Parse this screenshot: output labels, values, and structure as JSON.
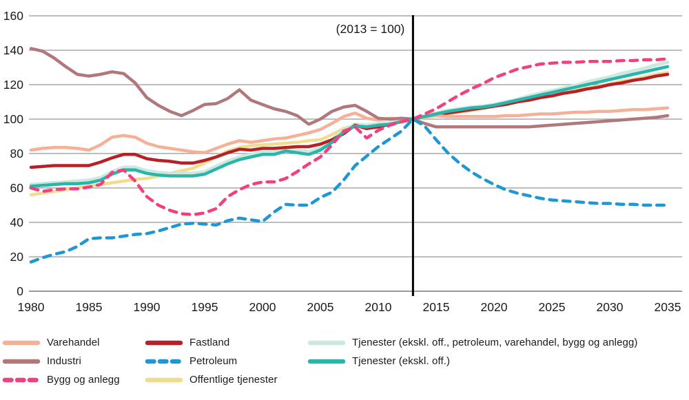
{
  "chart_data": {
    "type": "line",
    "title": "",
    "annotation": "(2013 = 100)",
    "xlabel": "",
    "ylabel": "",
    "ylim": [
      0,
      160
    ],
    "xlim": [
      1980,
      2035
    ],
    "grid": true,
    "legend_position": "bottom",
    "reference_line_x": 2013,
    "x_ticks": [
      1980,
      1985,
      1990,
      1995,
      2000,
      2005,
      2010,
      2015,
      2020,
      2025,
      2030,
      2035
    ],
    "y_ticks": [
      0,
      20,
      40,
      60,
      80,
      100,
      120,
      140,
      160
    ],
    "x_start": 1980,
    "x_step": 1,
    "series": [
      {
        "id": "offentlige",
        "name": "Offentlige tjenester",
        "color": "#EFDC8E",
        "dashed": false,
        "width": 4.5,
        "values": [
          56,
          57,
          58,
          59,
          60,
          61,
          62,
          63,
          64,
          65,
          65.5,
          67,
          68.5,
          70,
          71.5,
          74.5,
          78,
          81.5,
          83.5,
          84.5,
          85,
          85.5,
          86,
          86.5,
          87.5,
          88,
          91,
          94.5,
          96.5,
          96,
          96.5,
          97.5,
          98.5,
          100,
          101,
          102,
          103,
          104,
          105,
          106,
          107.5,
          108.5,
          110,
          111,
          112.5,
          113.5,
          115,
          116.5,
          118,
          119,
          120.5,
          122,
          123,
          124.5,
          126,
          127
        ]
      },
      {
        "id": "tjenester_eks_alt",
        "name": "Tjenester (ekskl. off., petroleum, varehandel, bygg og anlegg)",
        "color": "#CBE9DE",
        "dashed": false,
        "width": 5,
        "values": [
          62,
          62.5,
          63,
          63.5,
          64,
          64.5,
          66,
          69.5,
          72,
          72,
          70,
          69,
          68.5,
          68.5,
          68.5,
          69.5,
          72.5,
          75.5,
          78,
          79.5,
          81,
          81,
          83,
          82,
          81,
          83.5,
          88,
          93.5,
          97,
          96.5,
          97.5,
          98,
          99,
          100,
          102,
          103.5,
          105,
          106,
          107,
          107.5,
          108.5,
          110,
          111.5,
          113.5,
          115,
          116.5,
          118,
          119.5,
          121.5,
          123,
          124.5,
          126.5,
          128,
          129.5,
          131.5,
          133
        ]
      },
      {
        "id": "fastland",
        "name": "Fastland",
        "color": "#B62128",
        "dashed": false,
        "width": 4.5,
        "values": [
          72,
          72.5,
          73,
          73,
          73,
          73,
          75,
          77.5,
          79.5,
          79.5,
          77,
          76,
          75.5,
          74.5,
          74.5,
          76,
          78,
          80.5,
          82.5,
          82,
          83,
          83,
          83.5,
          84,
          84,
          85.5,
          88,
          91.5,
          96.5,
          94.5,
          95.5,
          97,
          98.5,
          100,
          101.5,
          102.5,
          103.5,
          104.5,
          105.5,
          106.5,
          107.5,
          108.5,
          110,
          111,
          112.5,
          113.5,
          115,
          116,
          117.5,
          118.5,
          120,
          121,
          122.5,
          123.5,
          125,
          126
        ]
      },
      {
        "id": "varehandel",
        "name": "Varehandel",
        "color": "#F5B197",
        "dashed": false,
        "width": 4.5,
        "values": [
          82,
          83,
          83.5,
          83.5,
          83,
          82,
          85,
          89.5,
          90.5,
          89.5,
          86,
          84,
          83,
          82,
          81,
          80.5,
          83,
          85.5,
          87.5,
          86.5,
          87.5,
          88.5,
          89,
          90.5,
          92,
          94,
          97.5,
          101.5,
          103.5,
          100.5,
          99.5,
          100.5,
          100,
          100,
          101.5,
          102,
          101.5,
          101.5,
          101.5,
          101.5,
          101.5,
          102,
          102,
          102.5,
          103,
          103,
          103.5,
          104,
          104,
          104.5,
          104.5,
          105,
          105.5,
          105.5,
          106,
          106.5
        ]
      },
      {
        "id": "industri",
        "name": "Industri",
        "color": "#B0787A",
        "dashed": false,
        "width": 4.5,
        "values": [
          141,
          139.5,
          135.5,
          130.5,
          126,
          125,
          126,
          127.5,
          126.5,
          121,
          112.5,
          108,
          104.5,
          102,
          105,
          108.5,
          109,
          112,
          117,
          111,
          108.5,
          106,
          104.5,
          102,
          97,
          100,
          104.5,
          107,
          108,
          104.5,
          100.5,
          100,
          100.5,
          100,
          97.5,
          95.5,
          95.5,
          95.5,
          95.5,
          95.5,
          95.5,
          95.5,
          95.5,
          95.5,
          96,
          96.5,
          97,
          97.5,
          98,
          98.5,
          99,
          99.5,
          100,
          100.5,
          101,
          102
        ]
      },
      {
        "id": "tjenester_eks_off",
        "name": "Tjenester (ekskl. off.)",
        "color": "#2BB4A9",
        "dashed": false,
        "width": 4.5,
        "values": [
          61,
          61.5,
          62,
          62.5,
          62.5,
          63,
          64.5,
          68,
          70.5,
          70.5,
          68.5,
          67.5,
          67,
          67,
          67,
          68,
          71,
          74,
          76.5,
          78,
          79.5,
          79.5,
          81.5,
          80.5,
          79.5,
          82,
          86.5,
          92.5,
          96,
          95.5,
          96.5,
          97,
          98.5,
          100,
          101.5,
          103,
          104.5,
          105.5,
          106.5,
          107,
          108,
          109.5,
          111,
          112.5,
          114,
          115.5,
          117,
          118.5,
          120,
          121.5,
          123,
          124.5,
          126,
          127.5,
          129,
          130.5
        ]
      },
      {
        "id": "bygg",
        "name": "Bygg og anlegg",
        "color": "#F2407E",
        "dashed": true,
        "width": 4.5,
        "values": [
          60,
          58,
          59,
          59.5,
          59.5,
          60.5,
          62,
          69,
          70.5,
          64,
          55,
          50,
          47,
          45,
          44.5,
          45.5,
          48,
          55,
          59,
          62,
          63.5,
          63.5,
          65.5,
          69.5,
          74,
          78,
          85,
          93,
          95.5,
          89,
          93.5,
          96.5,
          98.5,
          100,
          103,
          106,
          110,
          114,
          117.5,
          120.5,
          124,
          126.5,
          129,
          130.5,
          132,
          132.5,
          133,
          133,
          133.5,
          133.5,
          133.5,
          134,
          134,
          134.5,
          134.5,
          135
        ]
      },
      {
        "id": "petroleum",
        "name": "Petroleum",
        "color": "#1F97D5",
        "dashed": true,
        "width": 4.5,
        "values": [
          17,
          19.5,
          21.5,
          23,
          26,
          30.5,
          31,
          31,
          32,
          33,
          33.5,
          35,
          37,
          39,
          39.5,
          39,
          38.5,
          41,
          42.5,
          41.5,
          40.5,
          46,
          50.5,
          50,
          50,
          54.5,
          57.5,
          64.5,
          73,
          78.5,
          84,
          88.5,
          93,
          100,
          96,
          88,
          80.5,
          74.5,
          69.5,
          65.5,
          62,
          59,
          57,
          55.5,
          54,
          53,
          52.5,
          52,
          51.5,
          51,
          51,
          50.5,
          50.5,
          50,
          50,
          50
        ]
      }
    ]
  },
  "legend": {
    "columns": [
      {
        "x": 3,
        "items": [
          {
            "series_id": "varehandel",
            "label": "Varehandel"
          },
          {
            "series_id": "industri",
            "label": "Industri"
          },
          {
            "series_id": "bygg",
            "label": "Bygg og anlegg"
          }
        ]
      },
      {
        "x": 210,
        "items": [
          {
            "series_id": "fastland",
            "label": "Fastland"
          },
          {
            "series_id": "petroleum",
            "label": "Petroleum"
          },
          {
            "series_id": "offentlige",
            "label": "Offentlige tjenester"
          }
        ]
      },
      {
        "x": 446,
        "items": [
          {
            "series_id": "tjenester_eks_alt",
            "label": "Tjenester (ekskl. off., petroleum, varehandel, bygg og anlegg)"
          },
          {
            "series_id": "tjenester_eks_off",
            "label": "Tjenester (ekskl. off.)"
          }
        ]
      }
    ]
  },
  "styles": {
    "grid_color": "#A9A9A9",
    "axis_color": "#999999",
    "text_color": "#1a1a1a",
    "reference_line_color": "#000000"
  }
}
